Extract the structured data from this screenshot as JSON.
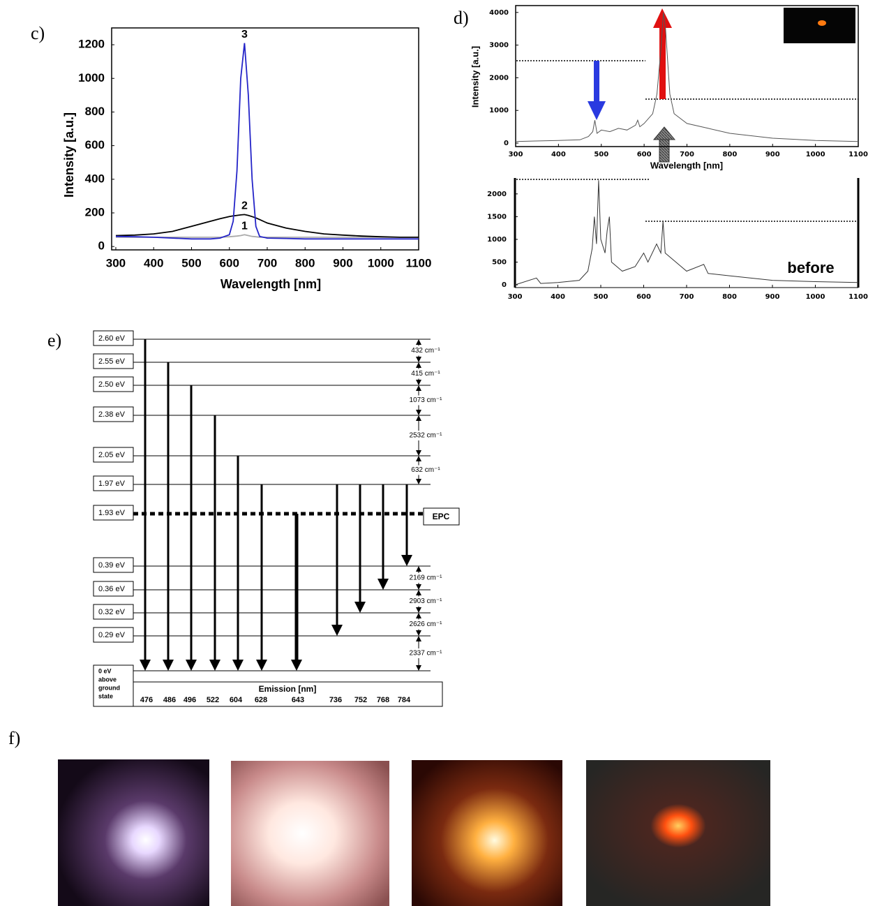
{
  "panel_labels": [
    "c)",
    "d)",
    "e)",
    "f)"
  ],
  "chart_data": [
    {
      "type": "line",
      "ylabel": "Intensity [a.u.]",
      "xlabel": "Wavelength [nm]",
      "x": [
        300,
        350,
        400,
        450,
        500,
        550,
        575,
        600,
        610,
        620,
        630,
        640,
        650,
        660,
        670,
        680,
        700,
        750,
        800,
        850,
        900,
        950,
        1000,
        1050,
        1100
      ],
      "series": [
        {
          "name": "1",
          "color": "#aaaaaa",
          "values": [
            55,
            55,
            55,
            55,
            55,
            55,
            55,
            58,
            60,
            62,
            65,
            70,
            65,
            60,
            58,
            55,
            55,
            55,
            55,
            55,
            55,
            55,
            55,
            55,
            55
          ]
        },
        {
          "name": "2",
          "color": "#000000",
          "values": [
            65,
            68,
            75,
            90,
            120,
            150,
            165,
            178,
            182,
            185,
            188,
            190,
            185,
            178,
            170,
            160,
            140,
            110,
            90,
            75,
            68,
            62,
            58,
            55,
            55
          ]
        },
        {
          "name": "3",
          "color": "#2424c8",
          "values": [
            60,
            58,
            55,
            50,
            45,
            45,
            50,
            70,
            150,
            450,
            1000,
            1210,
            900,
            400,
            120,
            60,
            50,
            48,
            45,
            45,
            45,
            45,
            45,
            45,
            45
          ]
        }
      ],
      "xlim": [
        289,
        1100
      ],
      "ylim": [
        -20,
        1300
      ],
      "xticks": [
        300,
        400,
        500,
        600,
        700,
        800,
        900,
        1000,
        1100
      ],
      "yticks": [
        0,
        200,
        400,
        600,
        800,
        1000,
        1200
      ]
    },
    {
      "type": "line",
      "ylabel": "Intensity [a.u.]",
      "xlabel": "Wavelength [nm]",
      "x": [
        300,
        400,
        450,
        470,
        480,
        485,
        490,
        500,
        520,
        540,
        560,
        580,
        585,
        590,
        600,
        620,
        630,
        640,
        645,
        650,
        660,
        670,
        700,
        750,
        800,
        900,
        1000,
        1100
      ],
      "series": [
        {
          "color": "#555555",
          "values": [
            50,
            80,
            100,
            200,
            350,
            700,
            300,
            400,
            350,
            450,
            400,
            550,
            700,
            500,
            600,
            900,
            1500,
            3000,
            4000,
            3500,
            1500,
            900,
            600,
            450,
            300,
            150,
            80,
            50
          ]
        }
      ],
      "xlim": [
        300,
        1100
      ],
      "ylim": [
        -107,
        4210
      ],
      "xticks": [
        300,
        400,
        500,
        600,
        700,
        800,
        900,
        1000,
        1100
      ],
      "yticks": [
        0,
        1000,
        2000,
        3000,
        4000
      ]
    },
    {
      "type": "line",
      "annotation": "before",
      "x": [
        300,
        350,
        360,
        400,
        450,
        470,
        480,
        485,
        490,
        495,
        500,
        510,
        515,
        520,
        525,
        550,
        580,
        600,
        610,
        630,
        640,
        645,
        650,
        700,
        740,
        750,
        800,
        900,
        1000,
        1100
      ],
      "series": [
        {
          "color": "#333333",
          "values": [
            0,
            150,
            30,
            50,
            100,
            300,
            800,
            1500,
            900,
            2300,
            1000,
            700,
            1200,
            1500,
            500,
            300,
            400,
            700,
            500,
            900,
            700,
            1400,
            700,
            300,
            450,
            250,
            200,
            100,
            70,
            50
          ]
        }
      ],
      "xlim": [
        300,
        1100
      ],
      "ylim": [
        -60,
        2350
      ],
      "xticks": [
        300,
        400,
        500,
        600,
        700,
        800,
        900,
        1000,
        1100
      ],
      "yticks": [
        0,
        500,
        1000,
        1500,
        2000
      ]
    }
  ],
  "energy_diagram": {
    "levels": [
      "2.60 eV",
      "2.55 eV",
      "2.50 eV",
      "2.38 eV",
      "2.05 eV",
      "1.97 eV",
      "1.93 eV",
      "0.39 eV",
      "0.36 eV",
      "0.32 eV",
      "0.29 eV"
    ],
    "ground_label": [
      "0 eV",
      "above",
      "ground",
      "state"
    ],
    "upper_gaps": [
      "432 cm⁻¹",
      "415 cm⁻¹",
      "1073 cm⁻¹",
      "2532 cm⁻¹",
      "632 cm⁻¹"
    ],
    "lower_gaps": [
      "2169 cm⁻¹",
      "2903 cm⁻¹",
      "2626 cm⁻¹",
      "2337 cm⁻¹"
    ],
    "epc_label": "EPC",
    "emission_title": "Emission [nm]",
    "emissions": [
      "476",
      "486",
      "496",
      "522",
      "604",
      "628",
      "643",
      "736",
      "752",
      "768",
      "784"
    ]
  }
}
